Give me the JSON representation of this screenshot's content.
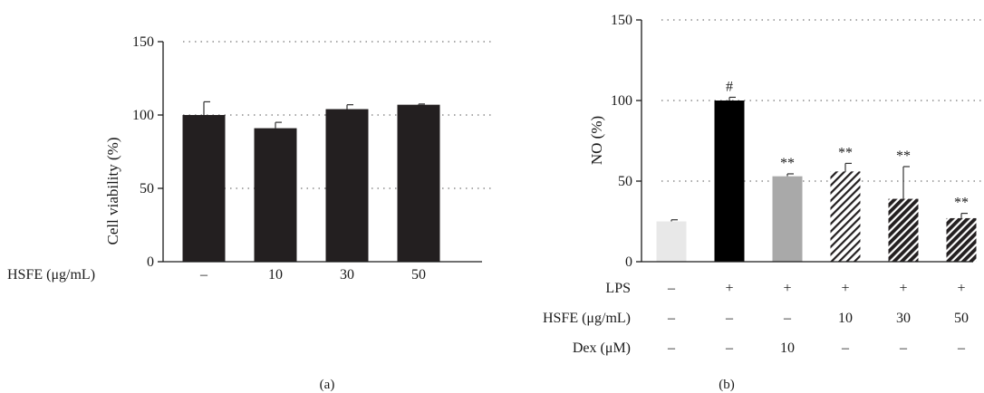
{
  "chart_data": [
    {
      "panel_label": "(a)",
      "type": "bar",
      "ylabel": "Cell viability (%)",
      "ylim": [
        0,
        150
      ],
      "yticks": [
        0,
        50,
        100,
        150
      ],
      "grid": true,
      "row_label": "HSFE (μg/mL)",
      "categories": [
        "–",
        "10",
        "30",
        "50"
      ],
      "values": [
        100,
        91,
        104,
        107
      ],
      "errors": [
        9,
        4,
        3,
        0.5
      ],
      "colors": [
        "#231f20",
        "#231f20",
        "#231f20",
        "#231f20"
      ]
    },
    {
      "panel_label": "(b)",
      "type": "bar",
      "ylabel": "NO (%)",
      "ylim": [
        0,
        150
      ],
      "yticks": [
        0,
        50,
        100,
        150
      ],
      "grid": true,
      "values": [
        25,
        100,
        53,
        56,
        39,
        27
      ],
      "errors": [
        1,
        2,
        1.5,
        5,
        20,
        3
      ],
      "annotations": [
        "",
        "#",
        "**",
        "**",
        "**",
        "**"
      ],
      "fills": [
        "light",
        "black",
        "gray",
        "hatch-light",
        "hatch-dense",
        "hatch-dense"
      ],
      "colors": {
        "light": "#e8e8e8",
        "black": "#000000",
        "gray": "#a9a9a9",
        "hatch": "#231f20"
      },
      "condition_rows": [
        {
          "label": "LPS",
          "values": [
            "–",
            "+",
            "+",
            "+",
            "+",
            "+"
          ]
        },
        {
          "label": "HSFE (μg/mL)",
          "values": [
            "–",
            "–",
            "–",
            "10",
            "30",
            "50"
          ]
        },
        {
          "label": "Dex (μM)",
          "values": [
            "–",
            "–",
            "10",
            "–",
            "–",
            "–"
          ]
        }
      ]
    }
  ]
}
